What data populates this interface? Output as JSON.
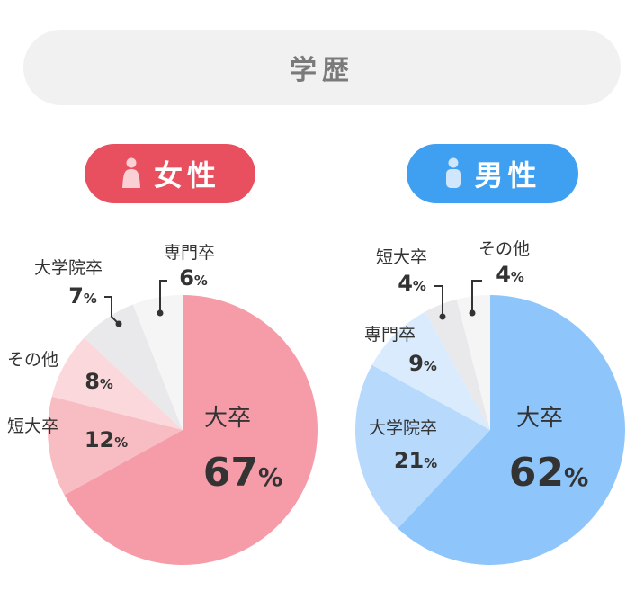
{
  "header": {
    "title": "学歴"
  },
  "colors": {
    "female_accent": "#e9505f",
    "male_accent": "#3f9ff0",
    "female_slices": [
      "#f59ca8",
      "#f8bcc3",
      "#fbd8dc",
      "#e9e9eb",
      "#f5f5f6"
    ],
    "male_slices": [
      "#8ec6fb",
      "#b6d9fc",
      "#d9ebfd",
      "#e9e9eb",
      "#f5f5f6"
    ]
  },
  "chart_data": [
    {
      "type": "pie",
      "title": "女性",
      "icon": "female-person-icon",
      "categories": [
        "大卒",
        "短大卒",
        "その他",
        "大学院卒",
        "専門卒"
      ],
      "values": [
        67,
        12,
        8,
        7,
        6
      ],
      "unit": "%"
    },
    {
      "type": "pie",
      "title": "男性",
      "icon": "male-person-icon",
      "categories": [
        "大卒",
        "大学院卒",
        "専門卒",
        "短大卒",
        "その他"
      ],
      "values": [
        62,
        21,
        9,
        4,
        4
      ],
      "unit": "%"
    }
  ]
}
